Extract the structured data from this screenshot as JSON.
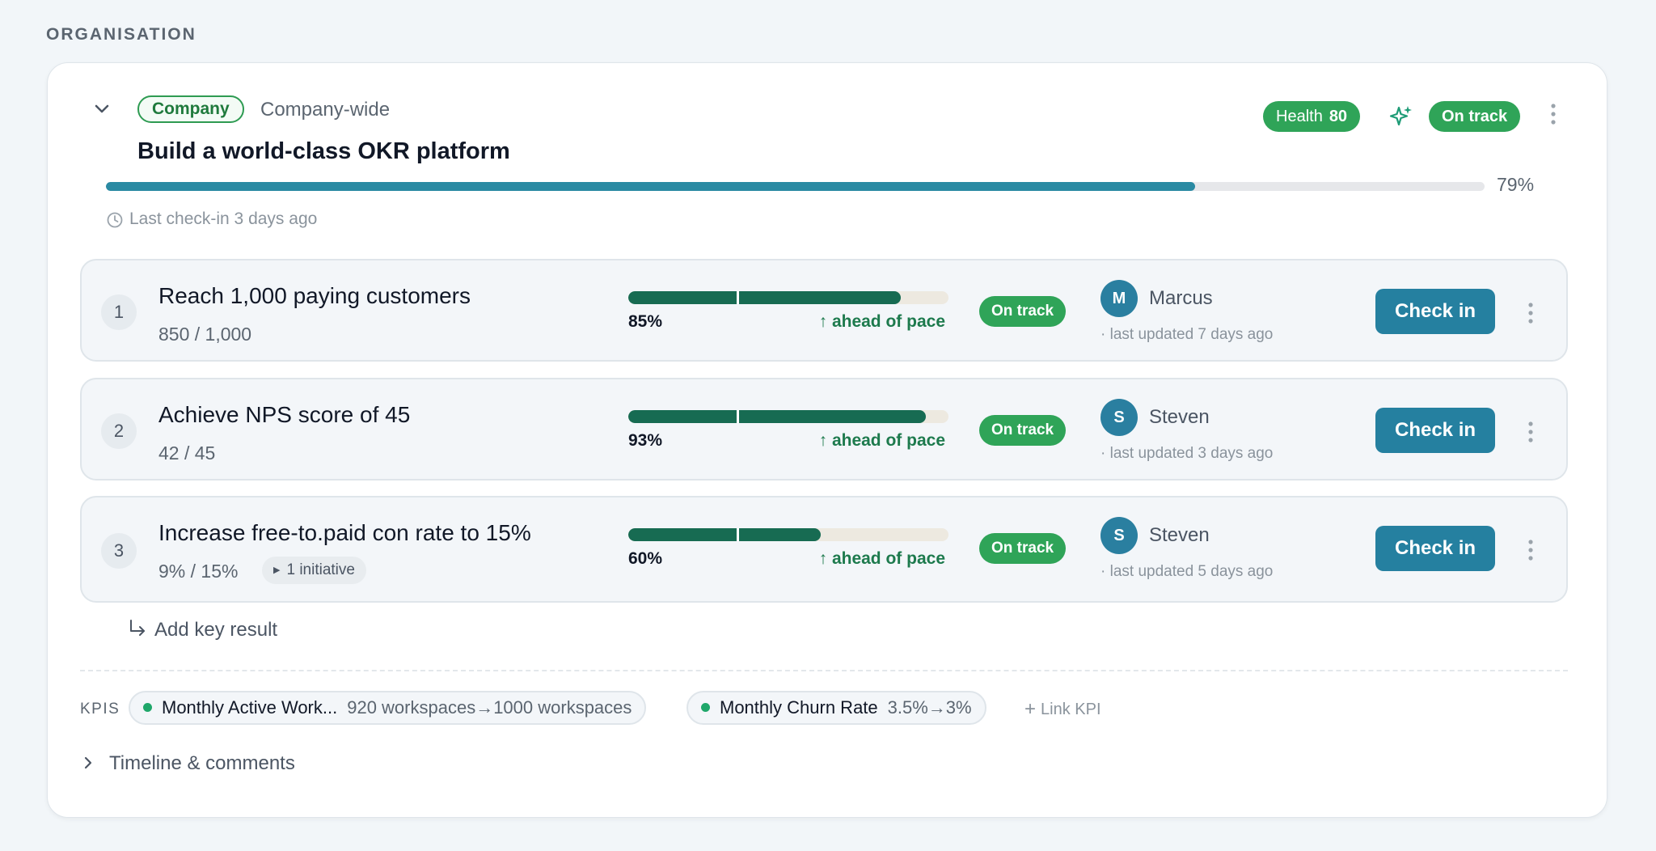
{
  "section": {
    "label": "ORGANISATION"
  },
  "objective": {
    "tag": "Company",
    "scope": "Company-wide",
    "title": "Build a world-class OKR platform",
    "health_label": "Health",
    "health_value": "80",
    "status": "On track",
    "progress": 0.79,
    "progress_label": "79%",
    "last_checkin": "Last check-in 3 days ago"
  },
  "key_results": [
    {
      "number": "1",
      "title": "Reach 1,000 paying customers",
      "value": "850 / 1,000",
      "progress": 0.85,
      "progress_label": "85%",
      "pace": "↑ ahead of pace",
      "status": "On track",
      "owner_initial": "M",
      "owner": "Marcus",
      "updated": "· last updated 7 days ago",
      "checkin_label": "Check in"
    },
    {
      "number": "2",
      "title": "Achieve NPS score of 45",
      "value": "42 / 45",
      "progress": 0.93,
      "progress_label": "93%",
      "pace": "↑ ahead of pace",
      "status": "On track",
      "owner_initial": "S",
      "owner": "Steven",
      "updated": "· last updated 3 days ago",
      "checkin_label": "Check in"
    },
    {
      "number": "3",
      "title": "Increase free-to.paid con rate to 15%",
      "value": "9% / 15%",
      "initiative": "1 initiative",
      "progress": 0.6,
      "progress_label": "60%",
      "pace": "↑ ahead of pace",
      "status": "On track",
      "owner_initial": "S",
      "owner": "Steven",
      "updated": "· last updated 5 days ago",
      "checkin_label": "Check in"
    }
  ],
  "add_key_result": "Add key result",
  "kpis": {
    "label": "KPIS",
    "items": [
      {
        "name": "Monthly Active Work...",
        "range": "920 workspaces→1000 workspaces"
      },
      {
        "name": "Monthly Churn Rate",
        "range": "3.5%→3%"
      }
    ],
    "link_label": "Link KPI"
  },
  "timeline_label": "Timeline & comments",
  "colors": {
    "accent": "#2580a0",
    "status_green": "#2fa458",
    "progress_dark": "#176b52",
    "objective_bar": "#2a8aa3"
  }
}
